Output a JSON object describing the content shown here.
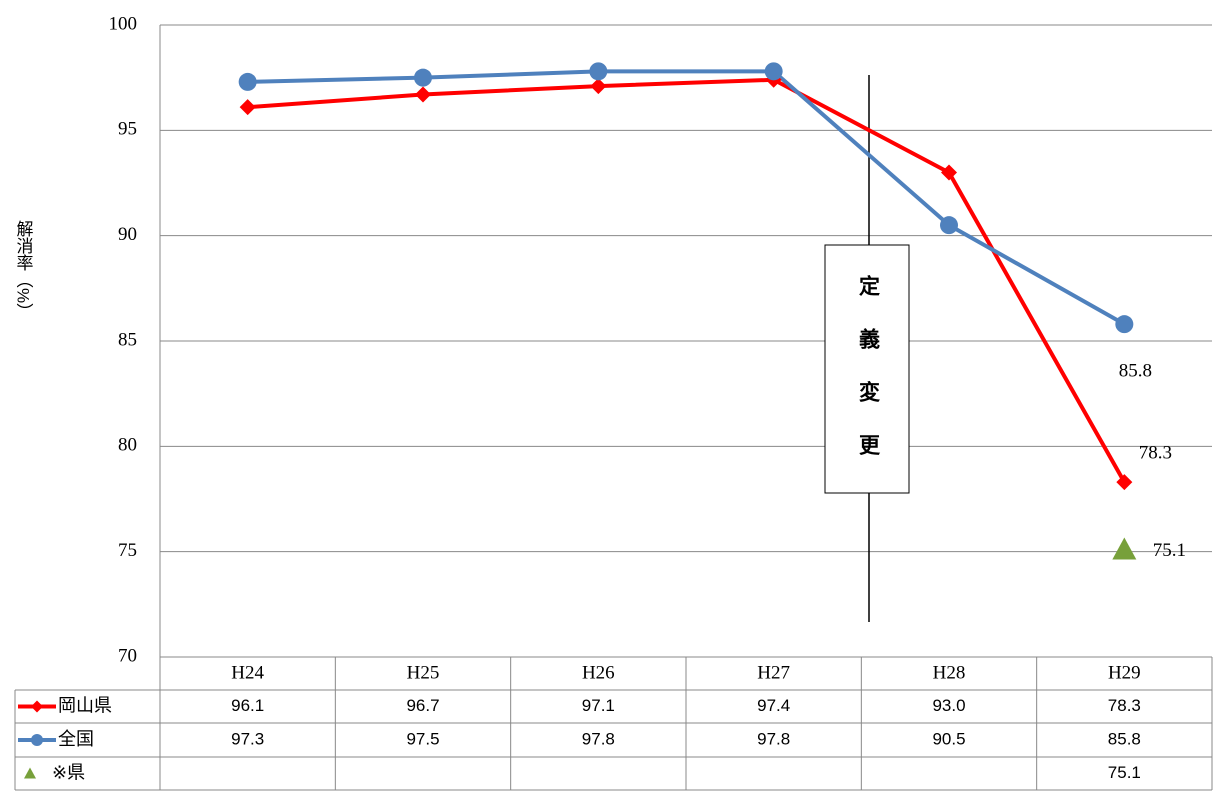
{
  "chart_data": {
    "type": "line",
    "y_label": "解消率（%）",
    "annotation": "定義変更",
    "categories": [
      "H24",
      "H25",
      "H26",
      "H27",
      "H28",
      "H29"
    ],
    "series": [
      {
        "name": "岡山県",
        "color": "#ff0000",
        "marker": "diamond",
        "values": [
          96.1,
          96.7,
          97.1,
          97.4,
          93.0,
          78.3
        ],
        "value_labels": [
          "96.1",
          "96.7",
          "97.1",
          "97.4",
          "93.0",
          "78.3"
        ]
      },
      {
        "name": "全国",
        "color": "#4f81bd",
        "marker": "circle",
        "values": [
          97.3,
          97.5,
          97.8,
          97.8,
          90.5,
          85.8
        ],
        "value_labels": [
          "97.3",
          "97.5",
          "97.8",
          "97.8",
          "90.5",
          "85.8"
        ]
      },
      {
        "name": "※県",
        "color": "#77a03a",
        "marker": "triangle",
        "values": [
          null,
          null,
          null,
          null,
          null,
          75.1
        ],
        "value_labels": [
          null,
          null,
          null,
          null,
          null,
          "75.1"
        ]
      }
    ],
    "ylim": [
      70,
      100
    ],
    "yticks": [
      70,
      75,
      80,
      85,
      90,
      95,
      100
    ],
    "grid": true
  }
}
